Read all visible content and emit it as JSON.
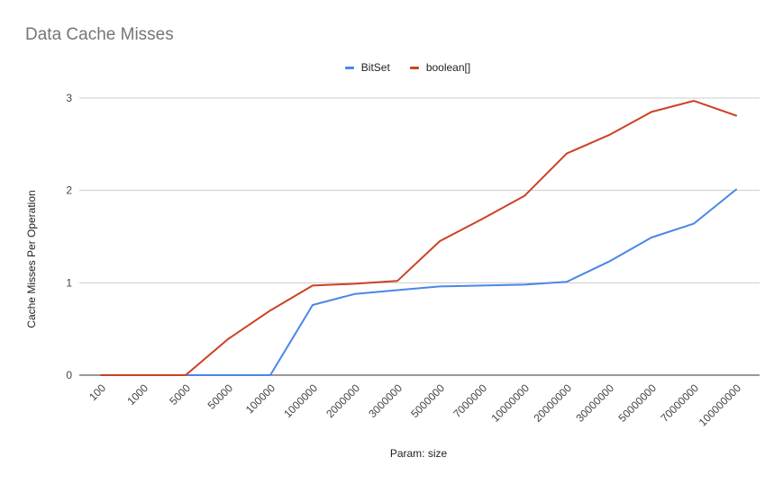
{
  "chart_data": {
    "type": "line",
    "title": "Data Cache Misses",
    "xlabel": "Param: size",
    "ylabel": "Cache Misses Per Operation",
    "categories": [
      "100",
      "1000",
      "5000",
      "50000",
      "100000",
      "1000000",
      "2000000",
      "3000000",
      "5000000",
      "7000000",
      "10000000",
      "20000000",
      "30000000",
      "50000000",
      "70000000",
      "100000000"
    ],
    "ylim": [
      0,
      3
    ],
    "yticks": [
      "0",
      "1",
      "2",
      "3"
    ],
    "grid": true,
    "legend_position": "top",
    "series": [
      {
        "name": "BitSet",
        "color": "#4a86e8",
        "values": [
          0.0,
          0.0,
          0.0,
          0.0,
          0.0,
          0.76,
          0.88,
          0.92,
          0.96,
          0.97,
          0.98,
          1.01,
          1.23,
          1.49,
          1.64,
          2.01
        ]
      },
      {
        "name": "boolean[]",
        "color": "#cc4125",
        "values": [
          0.0,
          0.0,
          0.0,
          0.39,
          0.7,
          0.97,
          0.99,
          1.02,
          1.45,
          1.69,
          1.94,
          2.4,
          2.6,
          2.85,
          2.97,
          2.81
        ]
      }
    ]
  }
}
